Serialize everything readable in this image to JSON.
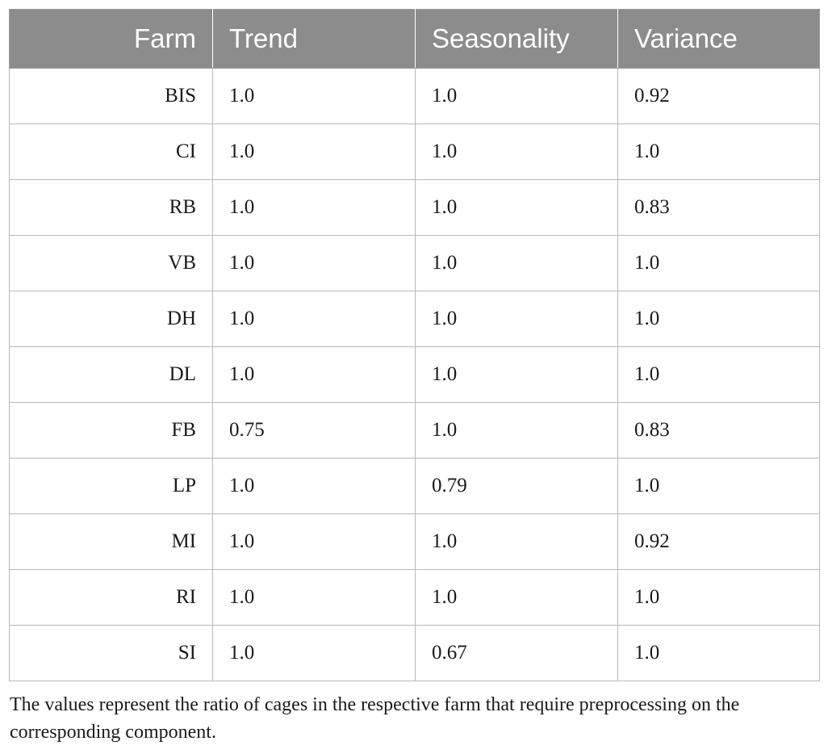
{
  "table": {
    "headers": {
      "farm": "Farm",
      "trend": "Trend",
      "seasonality": "Seasonality",
      "variance": "Variance"
    },
    "rows": [
      {
        "farm": "BIS",
        "trend": "1.0",
        "seasonality": "1.0",
        "variance": "0.92"
      },
      {
        "farm": "CI",
        "trend": "1.0",
        "seasonality": "1.0",
        "variance": "1.0"
      },
      {
        "farm": "RB",
        "trend": "1.0",
        "seasonality": "1.0",
        "variance": "0.83"
      },
      {
        "farm": "VB",
        "trend": "1.0",
        "seasonality": "1.0",
        "variance": "1.0"
      },
      {
        "farm": "DH",
        "trend": "1.0",
        "seasonality": "1.0",
        "variance": "1.0"
      },
      {
        "farm": "DL",
        "trend": "1.0",
        "seasonality": "1.0",
        "variance": "1.0"
      },
      {
        "farm": "FB",
        "trend": "0.75",
        "seasonality": "1.0",
        "variance": "0.83"
      },
      {
        "farm": "LP",
        "trend": "1.0",
        "seasonality": "0.79",
        "variance": "1.0"
      },
      {
        "farm": "MI",
        "trend": "1.0",
        "seasonality": "1.0",
        "variance": "0.92"
      },
      {
        "farm": "RI",
        "trend": "1.0",
        "seasonality": "1.0",
        "variance": "1.0"
      },
      {
        "farm": "SI",
        "trend": "1.0",
        "seasonality": "0.67",
        "variance": "1.0"
      }
    ]
  },
  "footnote": "The values represent the ratio of cages in the respective farm that require preprocessing on the corresponding component.",
  "colors": {
    "header_background": "#8c8c8c",
    "header_text": "#ffffff",
    "border": "#b8b8b8"
  }
}
